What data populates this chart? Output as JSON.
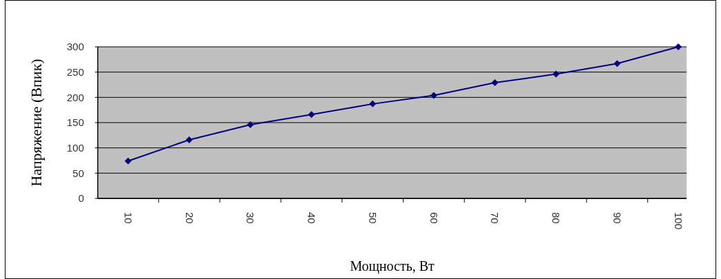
{
  "chart_data": {
    "type": "line",
    "xlabel": "Мощность, Вт",
    "ylabel": "Напряжение (Впик)",
    "categories": [
      "10",
      "20",
      "30",
      "40",
      "50",
      "60",
      "70",
      "80",
      "90",
      "100"
    ],
    "series": [
      {
        "color": "#000080",
        "values": [
          74,
          116,
          146,
          166,
          187,
          204,
          229,
          246,
          267,
          300
        ]
      }
    ],
    "ylim": [
      0,
      300
    ],
    "yticks": [
      0,
      50,
      100,
      150,
      200,
      250,
      300
    ],
    "grid": "y",
    "marker": "diamond",
    "line_style": "solid"
  }
}
